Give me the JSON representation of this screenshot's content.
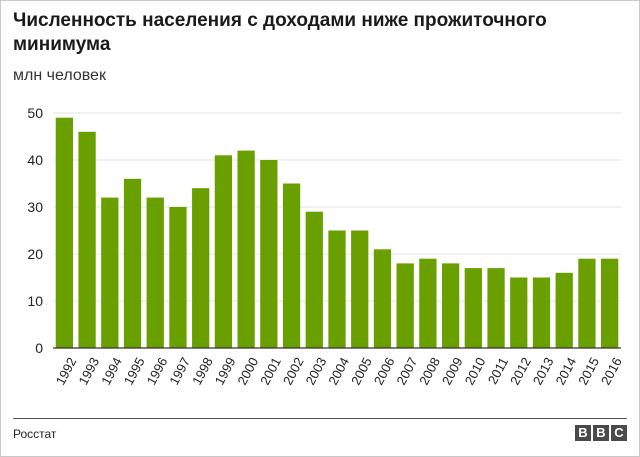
{
  "title": "Численность населения с доходами ниже прожиточного минимума",
  "unit_label": "млн человек",
  "source": "Росстат",
  "logo": [
    "B",
    "B",
    "C"
  ],
  "colors": {
    "bar": "#6a9f00",
    "grid": "#e3e3e3",
    "axis": "#333333",
    "text": "#222222"
  },
  "chart_data": {
    "type": "bar",
    "title": "Численность населения с доходами ниже прожиточного минимума",
    "ylabel": "млн человек",
    "xlabel": "",
    "categories": [
      "1992",
      "1993",
      "1994",
      "1995",
      "1996",
      "1997",
      "1998",
      "1999",
      "2000",
      "2001",
      "2002",
      "2003",
      "2004",
      "2005",
      "2006",
      "2007",
      "2008",
      "2009",
      "2010",
      "2011",
      "2012",
      "2013",
      "2014",
      "2015",
      "2016"
    ],
    "values": [
      49,
      46,
      32,
      36,
      32,
      30,
      34,
      41,
      42,
      40,
      35,
      29,
      25,
      25,
      21,
      18,
      19,
      18,
      17,
      17,
      15,
      15,
      16,
      19,
      19
    ],
    "ylim": [
      0,
      50
    ],
    "yticks": [
      0,
      10,
      20,
      30,
      40,
      50
    ],
    "grid": true
  }
}
